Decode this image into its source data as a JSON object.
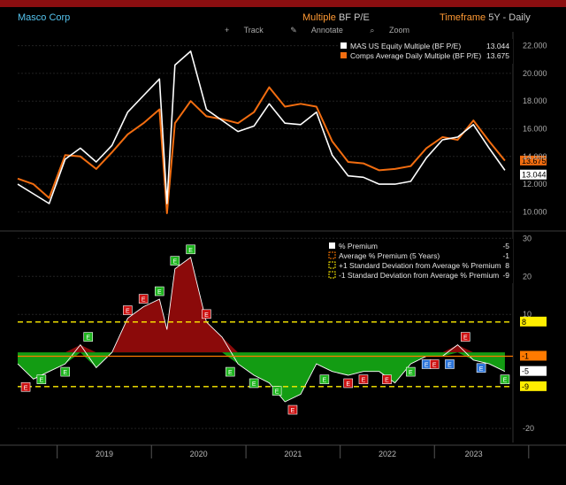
{
  "header": {
    "title": "Masco Corp",
    "metric_label": "Multiple",
    "metric_value": "BF P/E",
    "timeframe_label": "Timeframe",
    "timeframe_value": "5Y - Daily"
  },
  "toolbar": {
    "track": "Track",
    "annotate": "Annotate",
    "zoom": "Zoom"
  },
  "colors": {
    "background": "#000000",
    "mas": "#ffffff",
    "comps": "#f26d10",
    "premium_pos": "#8b0a0a",
    "premium_neg": "#139c13",
    "avg_line": "#ff7a00",
    "sd_lines": "#ffee00",
    "earnings_green": "#1eb51e",
    "earnings_red": "#cc1111",
    "earnings_blue": "#2a73d8"
  },
  "chart_data": [
    {
      "type": "line",
      "x": [
        "2018-08",
        "2018-10",
        "2018-12",
        "2019-02",
        "2019-04",
        "2019-06",
        "2019-08",
        "2019-10",
        "2019-12",
        "2020-02",
        "2020-03",
        "2020-04",
        "2020-06",
        "2020-08",
        "2020-10",
        "2020-12",
        "2021-02",
        "2021-04",
        "2021-06",
        "2021-08",
        "2021-10",
        "2021-12",
        "2022-02",
        "2022-04",
        "2022-06",
        "2022-08",
        "2022-10",
        "2022-12",
        "2023-02",
        "2023-04",
        "2023-06",
        "2023-08",
        "2023-10"
      ],
      "series": [
        {
          "name": "MAS US Equity Multiple (BF P/E)",
          "last": "13.044",
          "values": [
            12.0,
            11.3,
            10.6,
            13.8,
            14.6,
            13.6,
            14.8,
            17.2,
            18.4,
            19.6,
            10.6,
            20.6,
            21.6,
            17.4,
            16.6,
            15.8,
            16.2,
            17.8,
            16.4,
            16.3,
            17.2,
            14.1,
            12.6,
            12.5,
            12.0,
            12.0,
            12.2,
            13.9,
            15.2,
            15.4,
            16.3,
            14.6,
            13.0
          ]
        },
        {
          "name": "Comps Average Daily Multiple (BF P/E)",
          "last": "13.675",
          "values": [
            12.4,
            12.0,
            11.0,
            14.1,
            14.0,
            13.1,
            14.3,
            15.6,
            16.4,
            17.4,
            9.9,
            16.4,
            18.0,
            16.9,
            16.7,
            16.4,
            17.2,
            19.0,
            17.6,
            17.8,
            17.6,
            15.1,
            13.6,
            13.5,
            13.0,
            13.1,
            13.3,
            14.6,
            15.4,
            15.2,
            16.6,
            15.1,
            13.7
          ]
        }
      ],
      "ylim": [
        9,
        23
      ],
      "yticks": [
        10,
        12,
        14,
        16,
        18,
        20,
        22
      ],
      "ytick_labels": [
        "10.000",
        "12.000",
        "14.000",
        "16.000",
        "18.000",
        "20.000",
        "22.000"
      ],
      "legend_position": "top-right"
    },
    {
      "type": "area",
      "x": [
        "2018-08",
        "2018-10",
        "2018-12",
        "2019-02",
        "2019-04",
        "2019-06",
        "2019-08",
        "2019-10",
        "2019-12",
        "2020-02",
        "2020-03",
        "2020-04",
        "2020-06",
        "2020-08",
        "2020-10",
        "2020-12",
        "2021-02",
        "2021-04",
        "2021-06",
        "2021-08",
        "2021-10",
        "2021-12",
        "2022-02",
        "2022-04",
        "2022-06",
        "2022-08",
        "2022-10",
        "2022-12",
        "2023-02",
        "2023-04",
        "2023-06",
        "2023-08",
        "2023-10"
      ],
      "series": [
        {
          "name": "% Premium",
          "last": "-5",
          "values": [
            -3,
            -7,
            -5,
            -3,
            2,
            -4,
            0,
            9,
            12,
            14,
            6,
            22,
            25,
            8,
            4,
            -3,
            -6,
            -8,
            -13,
            -11,
            -3,
            -5,
            -6,
            -5,
            -5,
            -8,
            -3,
            -1,
            -1,
            2,
            -2,
            -3,
            -5
          ]
        },
        {
          "name": "Average % Premium (5 Years)",
          "value": -1
        },
        {
          "name": "+1 Standard Deviation from Average % Premium",
          "value": 8
        },
        {
          "name": "-1 Standard Deviation from Average % Premium",
          "value": -9
        }
      ],
      "ylim": [
        -23,
        31
      ],
      "yticks": [
        30,
        20,
        10,
        -20
      ],
      "ytick_labels": [
        "30",
        "20",
        "10",
        "-20"
      ],
      "right_labels": [
        "8",
        "-1",
        "-5",
        "-9"
      ],
      "earnings_markers": [
        {
          "x": "2018-09",
          "color": "red",
          "label": "E"
        },
        {
          "x": "2018-11",
          "color": "green",
          "label": "E"
        },
        {
          "x": "2019-02",
          "color": "green",
          "label": "E"
        },
        {
          "x": "2019-05",
          "color": "green",
          "label": "E"
        },
        {
          "x": "2019-10",
          "color": "red",
          "label": "E"
        },
        {
          "x": "2019-12",
          "color": "red",
          "label": "E"
        },
        {
          "x": "2020-02",
          "color": "green",
          "label": "E"
        },
        {
          "x": "2020-04",
          "color": "green",
          "label": "E"
        },
        {
          "x": "2020-06",
          "color": "green",
          "label": "E"
        },
        {
          "x": "2020-08",
          "color": "red",
          "label": "E"
        },
        {
          "x": "2020-11",
          "color": "green",
          "label": "E"
        },
        {
          "x": "2021-02",
          "color": "green",
          "label": "E"
        },
        {
          "x": "2021-05",
          "color": "green",
          "label": "E"
        },
        {
          "x": "2021-07",
          "color": "red",
          "label": "E"
        },
        {
          "x": "2021-11",
          "color": "green",
          "label": "E"
        },
        {
          "x": "2022-02",
          "color": "red",
          "label": "E"
        },
        {
          "x": "2022-04",
          "color": "red",
          "label": "E"
        },
        {
          "x": "2022-07",
          "color": "red",
          "label": "E"
        },
        {
          "x": "2022-10",
          "color": "green",
          "label": "E"
        },
        {
          "x": "2022-12",
          "color": "blue",
          "label": "E"
        },
        {
          "x": "2023-01",
          "color": "red",
          "label": "E"
        },
        {
          "x": "2023-03",
          "color": "blue",
          "label": "E"
        },
        {
          "x": "2023-05",
          "color": "red",
          "label": "E"
        },
        {
          "x": "2023-07",
          "color": "blue",
          "label": "E"
        },
        {
          "x": "2023-10",
          "color": "green",
          "label": "E"
        }
      ],
      "legend_position": "top-right"
    }
  ],
  "xaxis": {
    "year_labels": [
      "2019",
      "2020",
      "2021",
      "2022",
      "2023"
    ]
  }
}
